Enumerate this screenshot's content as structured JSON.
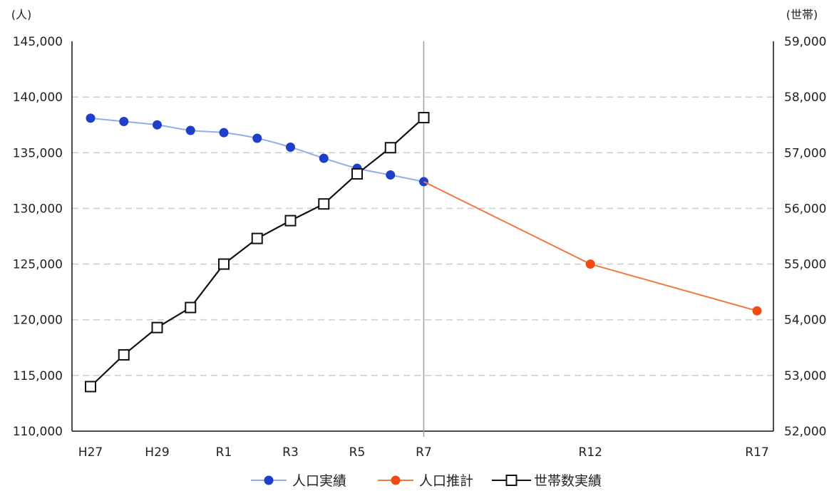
{
  "chart_data": {
    "type": "line",
    "y_unit_left": "(人)",
    "y_unit_right": "(世帯)",
    "x_categories": [
      "H27",
      "H28",
      "H29",
      "H30",
      "R1",
      "R2",
      "R3",
      "R4",
      "R5",
      "R6",
      "R7",
      "R8",
      "R9",
      "R10",
      "R11",
      "R12",
      "R13",
      "R14",
      "R15",
      "R16",
      "R17"
    ],
    "x_tick_labels": [
      {
        "category": "H27",
        "label": "H27"
      },
      {
        "category": "H29",
        "label": "H29"
      },
      {
        "category": "R1",
        "label": "R1"
      },
      {
        "category": "R3",
        "label": "R3"
      },
      {
        "category": "R5",
        "label": "R5"
      },
      {
        "category": "R7",
        "label": "R7"
      },
      {
        "category": "R12",
        "label": "R12"
      },
      {
        "category": "R17",
        "label": "R17"
      }
    ],
    "y_left": {
      "min": 110000,
      "max": 145000,
      "step": 5000,
      "tick_labels": [
        "110,000",
        "115,000",
        "120,000",
        "125,000",
        "130,000",
        "135,000",
        "140,000",
        "145,000"
      ]
    },
    "y_right": {
      "min": 52000,
      "max": 59000,
      "step": 1000,
      "tick_labels": [
        "52,000",
        "53,000",
        "54,000",
        "55,000",
        "56,000",
        "57,000",
        "58,000",
        "59,000"
      ]
    },
    "gridlines": "horizontal-dashed",
    "vertical_marker_category": "R7",
    "series": [
      {
        "name": "人口実績",
        "axis": "left",
        "color": "#1f3fc9",
        "line_color": "#8fb0e6",
        "marker": "circle",
        "points": [
          {
            "x": "H27",
            "y": 138100
          },
          {
            "x": "H28",
            "y": 137800
          },
          {
            "x": "H29",
            "y": 137500
          },
          {
            "x": "H30",
            "y": 137000
          },
          {
            "x": "R1",
            "y": 136800
          },
          {
            "x": "R2",
            "y": 136300
          },
          {
            "x": "R3",
            "y": 135500
          },
          {
            "x": "R4",
            "y": 134500
          },
          {
            "x": "R5",
            "y": 133600
          },
          {
            "x": "R6",
            "y": 133000
          },
          {
            "x": "R7",
            "y": 132400
          }
        ]
      },
      {
        "name": "人口推計",
        "axis": "left",
        "color": "#f24a12",
        "line_color": "#f07a40",
        "marker": "circle",
        "points": [
          {
            "x": "R7",
            "y": 132400,
            "marker": false
          },
          {
            "x": "R12",
            "y": 125000
          },
          {
            "x": "R17",
            "y": 120800
          }
        ]
      },
      {
        "name": "世帯数実績",
        "axis": "right",
        "color": "#111111",
        "line_color": "#111111",
        "marker": "square",
        "points": [
          {
            "x": "H27",
            "y": 52800
          },
          {
            "x": "H28",
            "y": 53370
          },
          {
            "x": "H29",
            "y": 53860
          },
          {
            "x": "H30",
            "y": 54220
          },
          {
            "x": "R1",
            "y": 55000
          },
          {
            "x": "R2",
            "y": 55460
          },
          {
            "x": "R3",
            "y": 55780
          },
          {
            "x": "R4",
            "y": 56080
          },
          {
            "x": "R5",
            "y": 56620
          },
          {
            "x": "R6",
            "y": 57090
          },
          {
            "x": "R7",
            "y": 57630
          }
        ]
      }
    ],
    "legend": {
      "position": "bottom",
      "items": [
        "人口実績",
        "人口推計",
        "世帯数実績"
      ]
    }
  }
}
